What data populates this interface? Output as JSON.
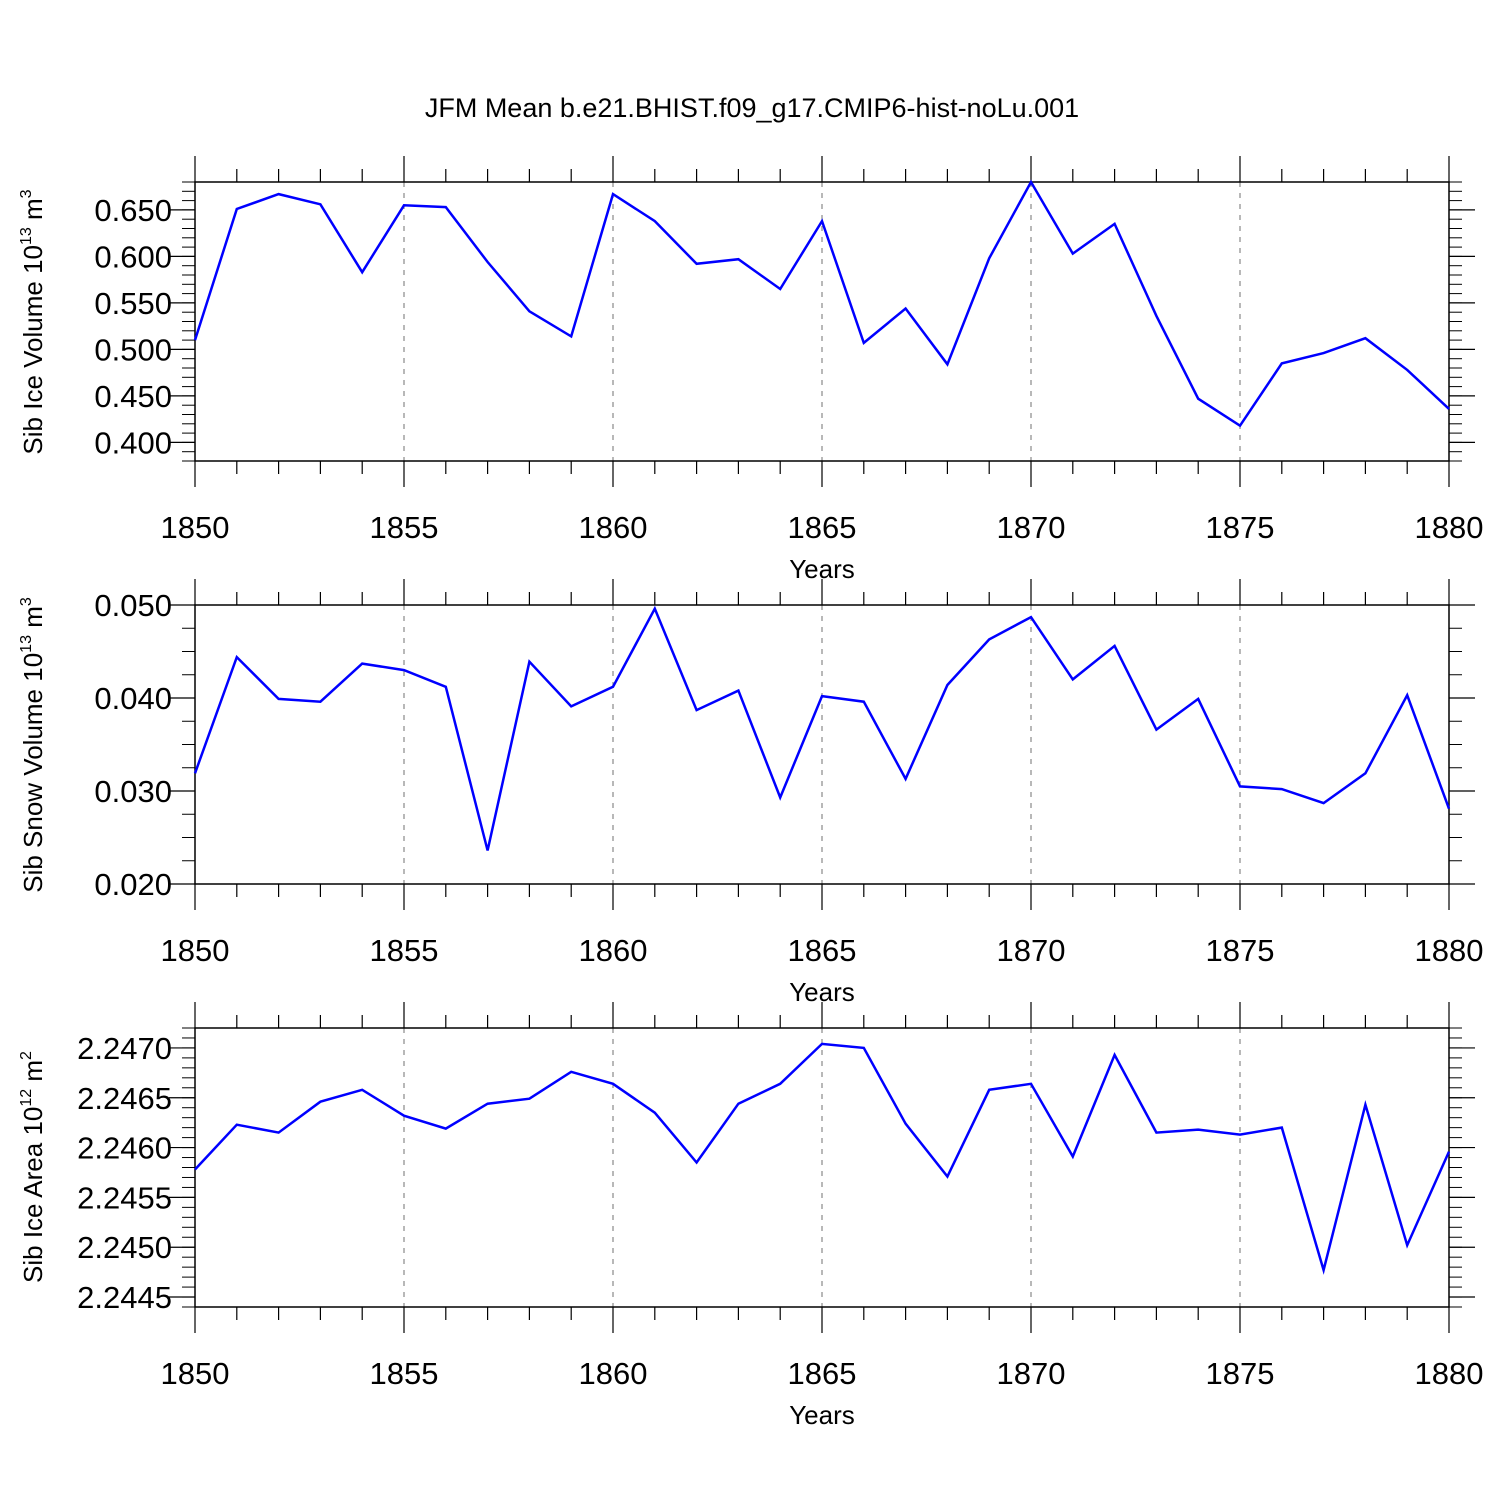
{
  "title": "JFM Mean b.e21.BHIST.f09_g17.CMIP6-hist-noLu.001",
  "line_color": "#0000ff",
  "chart_data": [
    {
      "type": "line",
      "ylabel": "Sib Ice Volume 10",
      "ylabel_exponent": "13",
      "ylabel_unit": " m",
      "ylabel_unit_exponent": "3",
      "xlabel": "Years",
      "xlim": [
        1850,
        1880
      ],
      "ylim": [
        0.38,
        0.68
      ],
      "xticks": [
        "1850",
        "1855",
        "1860",
        "1865",
        "1870",
        "1875",
        "1880"
      ],
      "yticks": [
        "0.400",
        "0.450",
        "0.500",
        "0.550",
        "0.600",
        "0.650"
      ],
      "grid": "vertical dashed at major x ticks",
      "series": [
        {
          "x": [
            1850,
            1851,
            1852,
            1853,
            1854,
            1855,
            1856,
            1857,
            1858,
            1859,
            1860,
            1861,
            1862,
            1863,
            1864,
            1865,
            1866,
            1867,
            1868,
            1869,
            1870,
            1871,
            1872,
            1873,
            1874,
            1875,
            1876,
            1877,
            1878,
            1879,
            1880
          ],
          "values": [
            0.51,
            0.651,
            0.667,
            0.656,
            0.583,
            0.655,
            0.653,
            0.594,
            0.541,
            0.514,
            0.667,
            0.638,
            0.592,
            0.597,
            0.565,
            0.638,
            0.507,
            0.544,
            0.484,
            0.598,
            0.68,
            0.603,
            0.635,
            0.536,
            0.447,
            0.418,
            0.485,
            0.496,
            0.512,
            0.478,
            0.436
          ]
        }
      ]
    },
    {
      "type": "line",
      "ylabel": "Sib Snow Volume 10",
      "ylabel_exponent": "13",
      "ylabel_unit": " m",
      "ylabel_unit_exponent": "3",
      "xlabel": "Years",
      "xlim": [
        1850,
        1880
      ],
      "ylim": [
        0.02,
        0.05
      ],
      "xticks": [
        "1850",
        "1855",
        "1860",
        "1865",
        "1870",
        "1875",
        "1880"
      ],
      "yticks": [
        "0.020",
        "0.030",
        "0.040",
        "0.050"
      ],
      "grid": "vertical dashed at major x ticks",
      "series": [
        {
          "x": [
            1850,
            1851,
            1852,
            1853,
            1854,
            1855,
            1856,
            1857,
            1858,
            1859,
            1860,
            1861,
            1862,
            1863,
            1864,
            1865,
            1866,
            1867,
            1868,
            1869,
            1870,
            1871,
            1872,
            1873,
            1874,
            1875,
            1876,
            1877,
            1878,
            1879,
            1880
          ],
          "values": [
            0.0319,
            0.0444,
            0.0399,
            0.0396,
            0.0437,
            0.043,
            0.0412,
            0.0236,
            0.0439,
            0.0391,
            0.0412,
            0.0496,
            0.0387,
            0.0408,
            0.0293,
            0.0402,
            0.0396,
            0.0313,
            0.0414,
            0.0463,
            0.0487,
            0.042,
            0.0456,
            0.0366,
            0.0399,
            0.0305,
            0.0302,
            0.0287,
            0.0319,
            0.0403,
            0.0281
          ]
        }
      ]
    },
    {
      "type": "line",
      "ylabel": "Sib Ice Area 10",
      "ylabel_exponent": "12",
      "ylabel_unit": " m",
      "ylabel_unit_exponent": "2",
      "xlabel": "Years",
      "xlim": [
        1850,
        1880
      ],
      "ylim": [
        2.2444,
        2.2472
      ],
      "xticks": [
        "1850",
        "1855",
        "1860",
        "1865",
        "1870",
        "1875",
        "1880"
      ],
      "yticks": [
        "2.2445",
        "2.2450",
        "2.2455",
        "2.2460",
        "2.2465",
        "2.2470"
      ],
      "grid": "vertical dashed at major x ticks",
      "series": [
        {
          "x": [
            1850,
            1851,
            1852,
            1853,
            1854,
            1855,
            1856,
            1857,
            1858,
            1859,
            1860,
            1861,
            1862,
            1863,
            1864,
            1865,
            1866,
            1867,
            1868,
            1869,
            1870,
            1871,
            1872,
            1873,
            1874,
            1875,
            1876,
            1877,
            1878,
            1879,
            1880
          ],
          "values": [
            2.24578,
            2.24623,
            2.24615,
            2.24646,
            2.24658,
            2.24632,
            2.24619,
            2.24644,
            2.24649,
            2.24676,
            2.24664,
            2.24635,
            2.24585,
            2.24644,
            2.24664,
            2.24704,
            2.247,
            2.24624,
            2.24571,
            2.24658,
            2.24664,
            2.24591,
            2.24693,
            2.24615,
            2.24618,
            2.24613,
            2.2462,
            2.24477,
            2.24643,
            2.24502,
            2.24596
          ]
        }
      ]
    }
  ]
}
